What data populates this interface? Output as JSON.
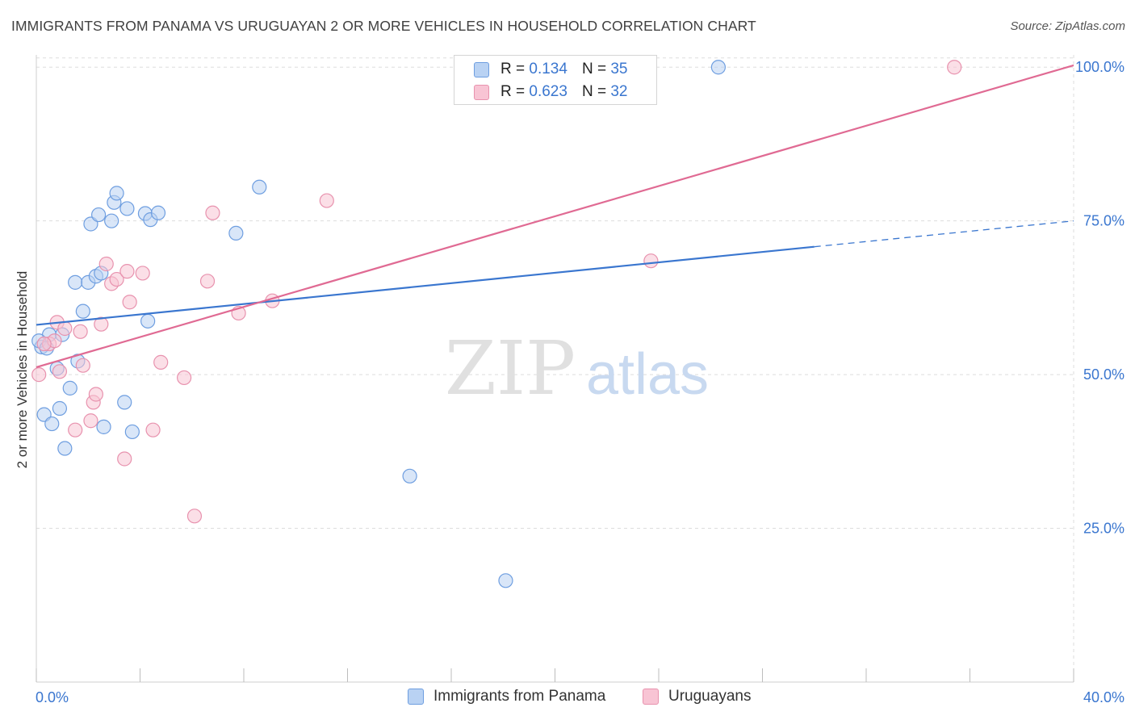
{
  "title": "IMMIGRANTS FROM PANAMA VS URUGUAYAN 2 OR MORE VEHICLES IN HOUSEHOLD CORRELATION CHART",
  "source": "Source: ZipAtlas.com",
  "watermark": {
    "zip": "ZIP",
    "atlas": "atlas"
  },
  "legend": {
    "r_label": "R =",
    "n_label": "N =",
    "rows": [
      {
        "name": "Immigrants from Panama",
        "r": "0.134",
        "n": "35",
        "fill": "#b9d2f3",
        "stroke": "#6e9ee0"
      },
      {
        "name": "Uruguayans",
        "r": "0.623",
        "n": "32",
        "fill": "#f8c4d4",
        "stroke": "#e892ae"
      }
    ]
  },
  "colors": {
    "blue_line": "#3a76cf",
    "pink_line": "#e06a93",
    "axis_text": "#3a76cf",
    "grid": "#dddddd"
  },
  "chart_data": {
    "type": "scatter",
    "title": "IMMIGRANTS FROM PANAMA VS URUGUAYAN 2 OR MORE VEHICLES IN HOUSEHOLD CORRELATION CHART",
    "xlabel": "",
    "ylabel": "2 or more Vehicles in Household",
    "xlim": [
      0,
      40
    ],
    "ylim": [
      0,
      102
    ],
    "x_tick_labels": [
      "0.0%",
      "40.0%"
    ],
    "y_ticks": [
      25,
      50,
      75,
      100
    ],
    "y_tick_labels": [
      "25.0%",
      "50.0%",
      "75.0%",
      "100.0%"
    ],
    "grid": true,
    "series": [
      {
        "name": "Immigrants from Panama",
        "color": "#6e9ee0",
        "points": [
          [
            0.2,
            54.5
          ],
          [
            0.5,
            56.5
          ],
          [
            0.3,
            43.5
          ],
          [
            0.6,
            42.0
          ],
          [
            0.8,
            51.0
          ],
          [
            0.9,
            44.5
          ],
          [
            1.0,
            56.5
          ],
          [
            1.1,
            38.0
          ],
          [
            1.3,
            47.8
          ],
          [
            1.5,
            65.0
          ],
          [
            1.6,
            52.2
          ],
          [
            1.8,
            60.3
          ],
          [
            2.0,
            65.0
          ],
          [
            2.1,
            74.5
          ],
          [
            2.3,
            66.0
          ],
          [
            2.4,
            76.0
          ],
          [
            2.5,
            66.5
          ],
          [
            2.6,
            41.5
          ],
          [
            2.9,
            75.0
          ],
          [
            3.0,
            78.0
          ],
          [
            3.1,
            79.5
          ],
          [
            3.4,
            45.5
          ],
          [
            3.5,
            77.0
          ],
          [
            3.7,
            40.7
          ],
          [
            4.2,
            76.2
          ],
          [
            4.3,
            58.7
          ],
          [
            4.4,
            75.2
          ],
          [
            4.7,
            76.3
          ],
          [
            7.7,
            73.0
          ],
          [
            8.6,
            80.5
          ],
          [
            14.4,
            33.5
          ],
          [
            18.1,
            16.5
          ],
          [
            26.3,
            100.0
          ],
          [
            0.1,
            55.5
          ],
          [
            0.4,
            54.3
          ]
        ],
        "trend": {
          "x0": 0,
          "y0": 58.1,
          "x1": 30,
          "y1": 70.8,
          "dash_to": 40,
          "dash_y": 75.0
        }
      },
      {
        "name": "Uruguayans",
        "color": "#e892ae",
        "points": [
          [
            0.1,
            50.0
          ],
          [
            0.5,
            55.0
          ],
          [
            0.7,
            55.5
          ],
          [
            0.8,
            58.5
          ],
          [
            0.9,
            50.5
          ],
          [
            1.1,
            57.5
          ],
          [
            1.5,
            41.0
          ],
          [
            1.7,
            57.0
          ],
          [
            1.8,
            51.5
          ],
          [
            2.1,
            42.5
          ],
          [
            2.2,
            45.5
          ],
          [
            2.3,
            46.8
          ],
          [
            2.5,
            58.2
          ],
          [
            2.7,
            68.0
          ],
          [
            2.9,
            64.8
          ],
          [
            3.1,
            65.5
          ],
          [
            3.4,
            36.3
          ],
          [
            3.5,
            66.8
          ],
          [
            3.6,
            61.8
          ],
          [
            4.1,
            66.5
          ],
          [
            4.5,
            41.0
          ],
          [
            4.8,
            52.0
          ],
          [
            5.7,
            49.5
          ],
          [
            6.1,
            27.0
          ],
          [
            6.6,
            65.2
          ],
          [
            6.8,
            76.3
          ],
          [
            7.8,
            60.0
          ],
          [
            9.1,
            62.0
          ],
          [
            11.2,
            78.3
          ],
          [
            23.7,
            68.5
          ],
          [
            35.4,
            100.0
          ],
          [
            0.3,
            55.0
          ]
        ],
        "trend": {
          "x0": 0,
          "y0": 51.2,
          "x1": 40,
          "y1": 100.3
        }
      }
    ]
  }
}
